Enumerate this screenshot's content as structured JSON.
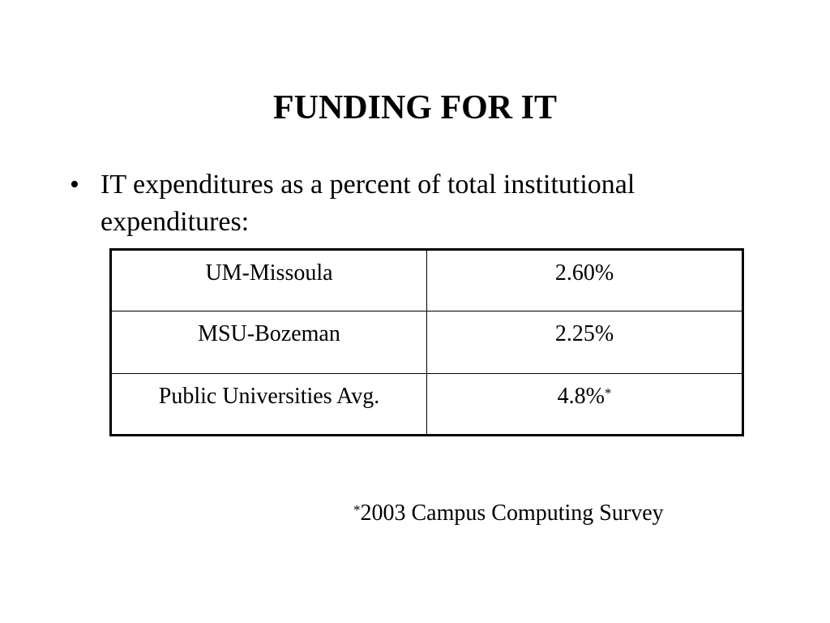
{
  "slide": {
    "title": "FUNDING FOR IT",
    "bullet": {
      "marker": "•",
      "text": "IT expenditures as a percent of total institutional expenditures:"
    },
    "table": {
      "rows": [
        {
          "institution": "UM-Missoula",
          "value": "2.60%",
          "footnote_mark": ""
        },
        {
          "institution": "MSU-Bozeman",
          "value": "2.25%",
          "footnote_mark": ""
        },
        {
          "institution": "Public Universities Avg.",
          "value": "4.8%",
          "footnote_mark": "*"
        }
      ]
    },
    "footnote": {
      "mark": "*",
      "text": "2003 Campus Computing Survey"
    }
  }
}
